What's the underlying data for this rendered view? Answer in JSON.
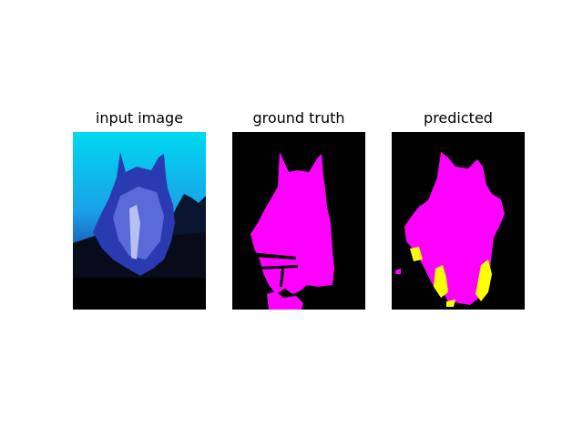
{
  "panels": [
    {
      "title": "input image"
    },
    {
      "title": "ground truth"
    },
    {
      "title": "predicted"
    }
  ],
  "colors": {
    "background": "#ffffff",
    "mask_background": "#000000",
    "horse_class": "#ff00ff",
    "error_class": "#ffff00",
    "sky_top": "#00d8f0",
    "sky_bottom": "#1a3fa0",
    "horse_tint": "#2a3ab0"
  }
}
